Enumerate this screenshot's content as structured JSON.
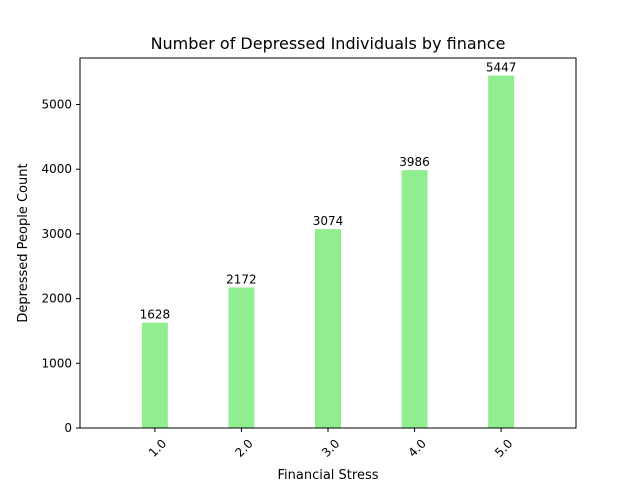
{
  "chart_data": {
    "type": "bar",
    "title": "Number of Depressed Individuals by finance",
    "xlabel": "Financial Stress",
    "ylabel": "Depressed People Count",
    "categories": [
      "1.0",
      "2.0",
      "3.0",
      "4.0",
      "5.0"
    ],
    "values": [
      1628,
      2172,
      3074,
      3986,
      5447
    ],
    "data_labels": [
      "1628",
      "2172",
      "3074",
      "3986",
      "5447"
    ],
    "ylim": [
      0,
      5719
    ],
    "yticks": [
      0,
      1000,
      2000,
      3000,
      4000,
      5000
    ],
    "ytick_labels": [
      "0",
      "1000",
      "2000",
      "3000",
      "4000",
      "5000"
    ],
    "bar_color": "#90ee90",
    "grid": false,
    "legend": false,
    "xtick_rotation_deg": 45
  }
}
